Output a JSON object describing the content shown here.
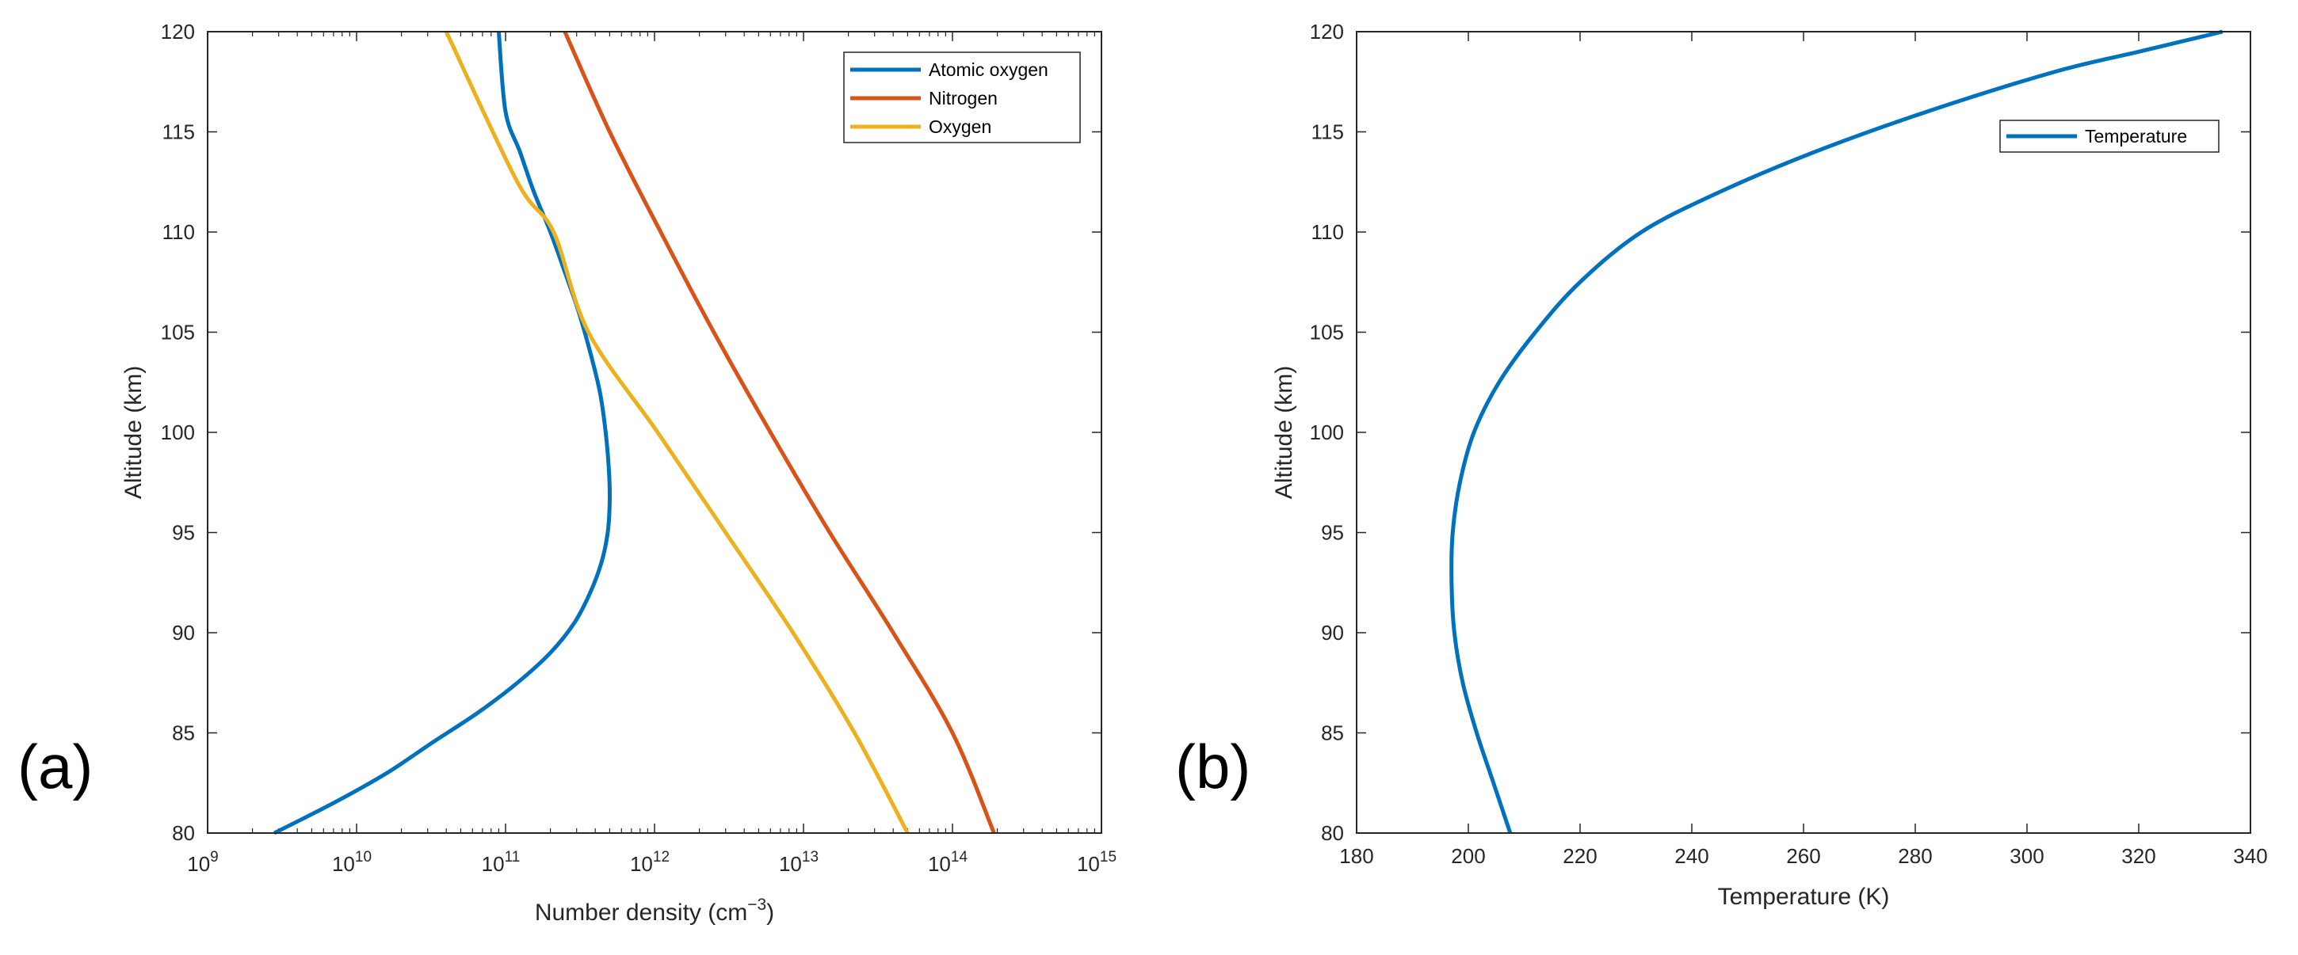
{
  "figure": {
    "panel_labels": [
      "(a)",
      "(b)"
    ]
  },
  "colors": {
    "atomic_oxygen": "#0072BD",
    "nitrogen": "#D95319",
    "oxygen": "#EDB120",
    "temperature": "#0072BD",
    "axis": "#262626"
  },
  "chart_data": [
    {
      "panel": "(a)",
      "type": "line",
      "xscale": "log",
      "xlabel": "Number density (cm",
      "xlabel_sup": "−3",
      "xlabel_end": ")",
      "ylabel": "Altitude (km)",
      "xlim": [
        1000000000.0,
        1000000000000000.0
      ],
      "ylim": [
        80,
        120
      ],
      "x_tick_exponents": [
        9,
        10,
        11,
        12,
        13,
        14,
        15
      ],
      "x_tick_base": "10",
      "y_ticks": [
        80,
        85,
        90,
        95,
        100,
        105,
        110,
        115,
        120
      ],
      "legend_position": "top-right",
      "series": [
        {
          "name": "Atomic oxygen",
          "color_key": "atomic_oxygen",
          "x": [
            2800000000.0,
            7000000000.0,
            16000000000.0,
            32000000000.0,
            65000000000.0,
            120000000000.0,
            200000000000.0,
            290000000000.0,
            370000000000.0,
            440000000000.0,
            485000000000.0,
            500000000000.0,
            495000000000.0,
            470000000000.0,
            430000000000.0,
            370000000000.0,
            310000000000.0,
            250000000000.0,
            200000000000.0,
            155000000000.0,
            125000000000.0,
            100000000000.0,
            90000000000.0
          ],
          "y": [
            80,
            81.5,
            83,
            84.5,
            86,
            87.5,
            89,
            90.5,
            92,
            93.5,
            95,
            96.5,
            98,
            100,
            102,
            104,
            106,
            108,
            110,
            112,
            114,
            116,
            120
          ]
        },
        {
          "name": "Nitrogen",
          "color_key": "nitrogen",
          "x": [
            190000000000000.0,
            100000000000000.0,
            40000000000000.0,
            15000000000000.0,
            6000000000000.0,
            2500000000000.0,
            1100000000000.0,
            500000000000.0,
            250000000000.0
          ],
          "y": [
            80,
            85,
            90,
            95,
            100,
            105,
            110,
            115,
            120
          ]
        },
        {
          "name": "Oxygen",
          "color_key": "oxygen",
          "x": [
            50000000000000.0,
            22000000000000.0,
            8500000000000.0,
            3000000000000.0,
            1050000000000.0,
            360000000000.0,
            210000000000.0,
            120000000000.0,
            40000000000.0
          ],
          "y": [
            80,
            85,
            90,
            95,
            100,
            105,
            110,
            112.5,
            120
          ]
        }
      ]
    },
    {
      "panel": "(b)",
      "type": "line",
      "xscale": "linear",
      "xlabel": "Temperature (K)",
      "ylabel": "Altitude (km)",
      "xlim": [
        180,
        340
      ],
      "ylim": [
        80,
        120
      ],
      "x_ticks": [
        180,
        200,
        220,
        240,
        260,
        280,
        300,
        320,
        340
      ],
      "y_ticks": [
        80,
        85,
        90,
        95,
        100,
        105,
        110,
        115,
        120
      ],
      "legend_position": "top-right",
      "series": [
        {
          "name": "Temperature",
          "color_key": "temperature",
          "x": [
            207.5,
            204.5,
            201.5,
            199,
            197.5,
            197,
            197.2,
            198.5,
            201,
            205.5,
            212,
            220,
            231,
            245,
            262,
            282,
            305,
            320,
            335
          ],
          "y": [
            80,
            82.5,
            85,
            87.5,
            90,
            92.5,
            95,
            97.5,
            100,
            102.5,
            105,
            107.5,
            110,
            112,
            114,
            116,
            118,
            119,
            120
          ]
        }
      ]
    }
  ]
}
